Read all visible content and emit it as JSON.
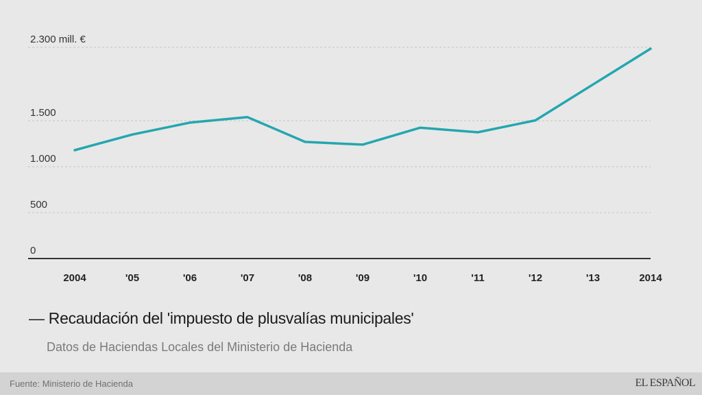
{
  "chart_data": {
    "type": "line",
    "title": "Recaudación del 'impuesto de plusvalías municipales'",
    "subtitle": "Datos de Haciendas Locales del Ministerio de Hacienda",
    "xlabel": "",
    "ylabel": "mill. €",
    "categories": [
      "2004",
      "'05",
      "'06",
      "'07",
      "'08",
      "'09",
      "'10",
      "'11",
      "'12",
      "'13",
      "2014"
    ],
    "series": [
      {
        "name": "Recaudación del 'impuesto de plusvalías municipales'",
        "color": "#24a6b0",
        "values": [
          1180,
          1350,
          1480,
          1540,
          1270,
          1240,
          1425,
          1375,
          1505,
          1895,
          2285
        ]
      }
    ],
    "ylim": [
      0,
      2300
    ],
    "yticks": [
      {
        "value": 0,
        "label": "0"
      },
      {
        "value": 500,
        "label": "500"
      },
      {
        "value": 1000,
        "label": "1.000"
      },
      {
        "value": 1500,
        "label": "1.500"
      },
      {
        "value": 2300,
        "label": "2.300 mill. €"
      }
    ],
    "grid": true,
    "legend": "bottom-left"
  },
  "legend": {
    "marker": "—",
    "label": "Recaudación del 'impuesto de plusvalías municipales'"
  },
  "subtitle": "Datos de Haciendas Locales del Ministerio de Hacienda",
  "footer": {
    "source": "Fuente: Ministerio de Hacienda",
    "brand": "EL ESPAÑOL"
  },
  "colors": {
    "background": "#e8e8e8",
    "line": "#24a6b0",
    "footer": "#d3d3d3"
  }
}
